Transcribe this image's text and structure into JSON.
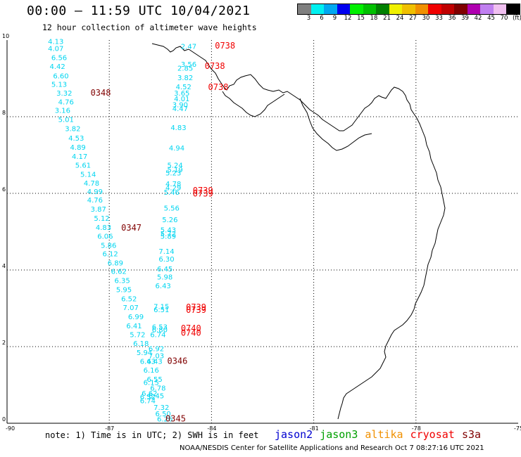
{
  "header": {
    "title": "00:00 – 11:59 UTC 10/04/2021",
    "subtitle": "12 hour collection of altimeter wave heights"
  },
  "scale": {
    "colors": [
      "#7f7f7f",
      "#00f0f0",
      "#00a8f0",
      "#0000f0",
      "#00f000",
      "#00c000",
      "#008000",
      "#f0f000",
      "#f0c000",
      "#f09000",
      "#f00000",
      "#c00000",
      "#800000",
      "#b000b0",
      "#c080f0",
      "#f0c0f0",
      "#000000"
    ],
    "labels": [
      "3",
      "6",
      "9",
      "12",
      "15",
      "18",
      "21",
      "24",
      "27",
      "30",
      "33",
      "36",
      "39",
      "42",
      "45",
      "70",
      "(ft)"
    ]
  },
  "footer": {
    "note": "note: 1) Time is in UTC; 2) SWH is in feet",
    "satellites": [
      {
        "name": "jason2",
        "color": "#0000d0"
      },
      {
        "name": "jason3",
        "color": "#00a000"
      },
      {
        "name": "altika",
        "color": "#f09000"
      },
      {
        "name": "cryosat",
        "color": "#f00000"
      },
      {
        "name": "s3a",
        "color": "#800000"
      }
    ],
    "credit": "NOAA/NESDIS Center for Satellite Applications and Research   Oct  7 08:27:16 UTC 2021"
  },
  "map": {
    "lon_range": [
      -90,
      -75
    ],
    "lat_range": [
      0,
      10
    ],
    "x_ticks": [
      "-90",
      "-87",
      "-84",
      "-81",
      "-78",
      "-75"
    ],
    "y_ticks": [
      "0",
      "2",
      "4",
      "6",
      "8",
      "10"
    ],
    "wave_color": "#00d5f0",
    "track_a": [
      {
        "lon": -88.8,
        "lat": 9.9,
        "v": "4.13"
      },
      {
        "lon": -88.8,
        "lat": 9.72,
        "v": "4.07"
      },
      {
        "lon": -88.7,
        "lat": 9.48,
        "v": "6.56"
      },
      {
        "lon": -88.75,
        "lat": 9.25,
        "v": "4.42"
      },
      {
        "lon": -88.65,
        "lat": 9.0,
        "v": "6.60"
      },
      {
        "lon": -88.7,
        "lat": 8.78,
        "v": "5.13"
      },
      {
        "lon": -88.55,
        "lat": 8.55,
        "v": "3.32"
      },
      {
        "lon": -88.5,
        "lat": 8.32,
        "v": "4.76"
      },
      {
        "lon": -88.6,
        "lat": 8.1,
        "v": "3.16"
      },
      {
        "lon": -88.5,
        "lat": 7.86,
        "v": "5.01"
      },
      {
        "lon": -88.3,
        "lat": 7.62,
        "v": "3.82"
      },
      {
        "lon": -88.2,
        "lat": 7.38,
        "v": "4.53"
      },
      {
        "lon": -88.15,
        "lat": 7.14,
        "v": "4.89"
      },
      {
        "lon": -88.1,
        "lat": 6.9,
        "v": "4.17"
      },
      {
        "lon": -88.0,
        "lat": 6.67,
        "v": "5.61"
      },
      {
        "lon": -87.85,
        "lat": 6.43,
        "v": "5.14"
      },
      {
        "lon": -87.75,
        "lat": 6.2,
        "v": "4.78"
      },
      {
        "lon": -87.65,
        "lat": 5.98,
        "v": "4.99"
      },
      {
        "lon": -87.65,
        "lat": 5.76,
        "v": "4.76"
      },
      {
        "lon": -87.55,
        "lat": 5.52,
        "v": "3.87"
      },
      {
        "lon": -87.45,
        "lat": 5.28,
        "v": "5.12"
      },
      {
        "lon": -87.4,
        "lat": 5.05,
        "v": "4.83"
      },
      {
        "lon": -87.35,
        "lat": 4.82,
        "v": "6.06"
      },
      {
        "lon": -87.25,
        "lat": 4.58,
        "v": "5.86"
      },
      {
        "lon": -87.2,
        "lat": 4.36,
        "v": "6.12"
      },
      {
        "lon": -87.05,
        "lat": 4.12,
        "v": "6.89"
      },
      {
        "lon": -86.95,
        "lat": 3.9,
        "v": "6.62"
      },
      {
        "lon": -86.85,
        "lat": 3.66,
        "v": "6.35"
      },
      {
        "lon": -86.8,
        "lat": 3.42,
        "v": "5.95"
      },
      {
        "lon": -86.65,
        "lat": 3.18,
        "v": "6.52"
      },
      {
        "lon": -86.6,
        "lat": 2.95,
        "v": "7.07"
      },
      {
        "lon": -86.45,
        "lat": 2.72,
        "v": "6.99"
      },
      {
        "lon": -86.5,
        "lat": 2.48,
        "v": "6.41"
      },
      {
        "lon": -86.4,
        "lat": 2.25,
        "v": "5.72"
      },
      {
        "lon": -86.3,
        "lat": 2.02,
        "v": "6.18"
      },
      {
        "lon": -86.2,
        "lat": 1.78,
        "v": "5.94"
      },
      {
        "lon": -86.1,
        "lat": 1.55,
        "v": "6.43"
      },
      {
        "lon": -86.0,
        "lat": 1.32,
        "v": "6.16"
      },
      {
        "lon": -85.9,
        "lat": 1.08,
        "v": "6.55"
      },
      {
        "lon": -85.8,
        "lat": 0.85,
        "v": "6.78"
      },
      {
        "lon": -85.85,
        "lat": 0.65,
        "v": "6.45"
      },
      {
        "lon": -85.7,
        "lat": 0.35,
        "v": "7.32"
      },
      {
        "lon": -85.65,
        "lat": 0.18,
        "v": "6.50"
      },
      {
        "lon": -85.6,
        "lat": 0.05,
        "v": "6.26"
      }
    ],
    "track_b": [
      {
        "lon": -84.9,
        "lat": 9.77,
        "v": "2.47"
      },
      {
        "lon": -85.0,
        "lat": 9.2,
        "v": "2.85"
      },
      {
        "lon": -84.9,
        "lat": 9.3,
        "v": "3.56"
      },
      {
        "lon": -85.0,
        "lat": 8.95,
        "v": "3.82"
      },
      {
        "lon": -85.05,
        "lat": 8.72,
        "v": "4.52"
      },
      {
        "lon": -85.1,
        "lat": 8.55,
        "v": "3.65"
      },
      {
        "lon": -85.1,
        "lat": 8.4,
        "v": "4.01"
      },
      {
        "lon": -85.15,
        "lat": 8.25,
        "v": "3.90"
      },
      {
        "lon": -85.15,
        "lat": 8.15,
        "v": "4.47"
      },
      {
        "lon": -85.2,
        "lat": 7.65,
        "v": "4.83"
      },
      {
        "lon": -85.25,
        "lat": 7.12,
        "v": "4.94"
      },
      {
        "lon": -85.3,
        "lat": 6.67,
        "v": "5.24"
      },
      {
        "lon": -85.3,
        "lat": 6.55,
        "v": "5.19"
      },
      {
        "lon": -85.35,
        "lat": 6.47,
        "v": "5.23"
      },
      {
        "lon": -85.35,
        "lat": 6.18,
        "v": "4.78"
      },
      {
        "lon": -85.35,
        "lat": 6.08,
        "v": "4.29"
      },
      {
        "lon": -85.4,
        "lat": 5.96,
        "v": "5.46"
      },
      {
        "lon": -85.4,
        "lat": 5.55,
        "v": "5.56"
      },
      {
        "lon": -85.45,
        "lat": 5.25,
        "v": "5.26"
      },
      {
        "lon": -85.5,
        "lat": 4.98,
        "v": "5.43"
      },
      {
        "lon": -85.5,
        "lat": 4.88,
        "v": "5.72"
      },
      {
        "lon": -85.5,
        "lat": 4.82,
        "v": "5.89"
      },
      {
        "lon": -85.55,
        "lat": 4.42,
        "v": "7.14"
      },
      {
        "lon": -85.55,
        "lat": 4.22,
        "v": "6.30"
      },
      {
        "lon": -85.6,
        "lat": 3.96,
        "v": "6.45"
      },
      {
        "lon": -85.6,
        "lat": 3.75,
        "v": "5.98"
      },
      {
        "lon": -85.65,
        "lat": 3.52,
        "v": "6.43"
      },
      {
        "lon": -85.7,
        "lat": 2.98,
        "v": "7.15"
      },
      {
        "lon": -85.7,
        "lat": 2.9,
        "v": "6.51"
      },
      {
        "lon": -85.75,
        "lat": 2.45,
        "v": "6.53"
      },
      {
        "lon": -85.75,
        "lat": 2.38,
        "v": "6.80"
      },
      {
        "lon": -85.8,
        "lat": 2.25,
        "v": "6.74"
      },
      {
        "lon": -85.85,
        "lat": 1.88,
        "v": "6.92"
      },
      {
        "lon": -85.85,
        "lat": 1.7,
        "v": "7.03"
      },
      {
        "lon": -85.9,
        "lat": 1.55,
        "v": "6.43"
      },
      {
        "lon": -86.0,
        "lat": 1.0,
        "v": "6.15"
      },
      {
        "lon": -86.05,
        "lat": 0.72,
        "v": "6.62"
      },
      {
        "lon": -86.1,
        "lat": 0.62,
        "v": "6.52"
      },
      {
        "lon": -86.1,
        "lat": 0.52,
        "v": "6.74"
      }
    ],
    "times": [
      {
        "lon": -83.9,
        "lat": 9.78,
        "t": "0738",
        "c": "#f00000"
      },
      {
        "lon": -84.2,
        "lat": 9.25,
        "t": "0738",
        "c": "#f00000"
      },
      {
        "lon": -84.1,
        "lat": 8.7,
        "t": "0738",
        "c": "#f00000"
      },
      {
        "lon": -87.55,
        "lat": 8.55,
        "t": "0348",
        "c": "#800000"
      },
      {
        "lon": -84.55,
        "lat": 6.0,
        "t": "0739",
        "c": "#f00000"
      },
      {
        "lon": -84.55,
        "lat": 5.92,
        "t": "0739",
        "c": "#f00000"
      },
      {
        "lon": -86.65,
        "lat": 5.03,
        "t": "0347",
        "c": "#800000"
      },
      {
        "lon": -84.75,
        "lat": 2.95,
        "t": "0739",
        "c": "#f00000"
      },
      {
        "lon": -84.75,
        "lat": 2.88,
        "t": "0739",
        "c": "#f00000"
      },
      {
        "lon": -84.9,
        "lat": 2.4,
        "t": "0740",
        "c": "#f00000"
      },
      {
        "lon": -84.9,
        "lat": 2.28,
        "t": "0740",
        "c": "#f00000"
      },
      {
        "lon": -85.3,
        "lat": 1.55,
        "t": "0346",
        "c": "#800000"
      },
      {
        "lon": -85.35,
        "lat": 0.05,
        "t": "0345",
        "c": "#800000"
      }
    ]
  }
}
